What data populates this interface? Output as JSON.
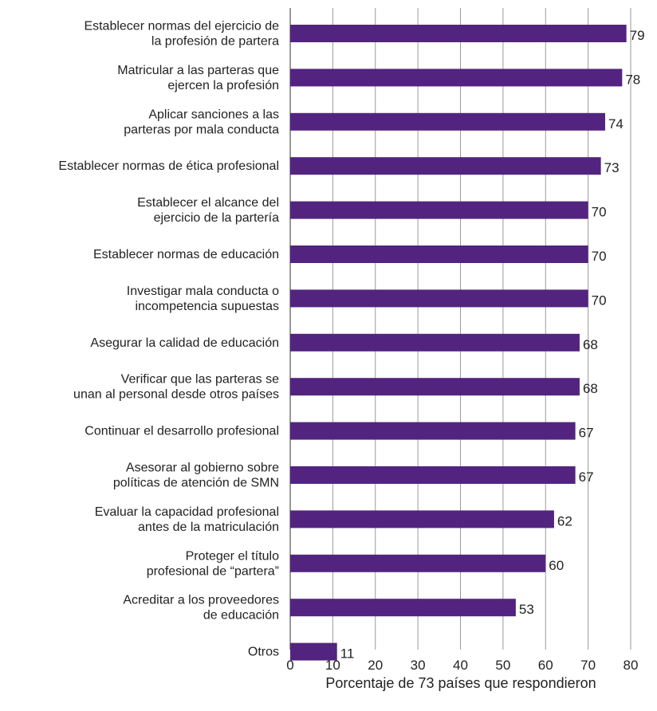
{
  "chart_data": {
    "type": "bar",
    "orientation": "horizontal",
    "categories": [
      [
        "Establecer normas del ejercicio de",
        "la profesión de partera"
      ],
      [
        "Matricular a las parteras que",
        "ejercen la profesión"
      ],
      [
        "Aplicar sanciones a las",
        "parteras por mala conducta"
      ],
      [
        "Establecer normas de ética profesional"
      ],
      [
        "Establecer el alcance del",
        "ejercicio de la partería"
      ],
      [
        "Establecer normas de educación"
      ],
      [
        "Investigar mala conducta o",
        "incompetencia supuestas"
      ],
      [
        "Asegurar la calidad de educación"
      ],
      [
        "Verificar que las parteras se",
        "unan al personal desde otros países"
      ],
      [
        "Continuar el desarrollo profesional"
      ],
      [
        "Asesorar al gobierno sobre",
        "políticas de atención de SMN"
      ],
      [
        "Evaluar la capacidad profesional",
        "antes de la matriculación"
      ],
      [
        "Proteger el título",
        "profesional de “partera”"
      ],
      [
        "Acreditar a los proveedores",
        "de educación"
      ],
      [
        "Otros"
      ]
    ],
    "values": [
      79,
      78,
      74,
      73,
      70,
      70,
      70,
      68,
      68,
      67,
      67,
      62,
      60,
      53,
      11
    ],
    "xlabel": "Porcentaje de 73 países que respondieron",
    "xlim": [
      0,
      80
    ],
    "xticks": [
      0,
      10,
      20,
      30,
      40,
      50,
      60,
      70,
      80
    ],
    "grid": true,
    "bar_color": "#52247f"
  }
}
